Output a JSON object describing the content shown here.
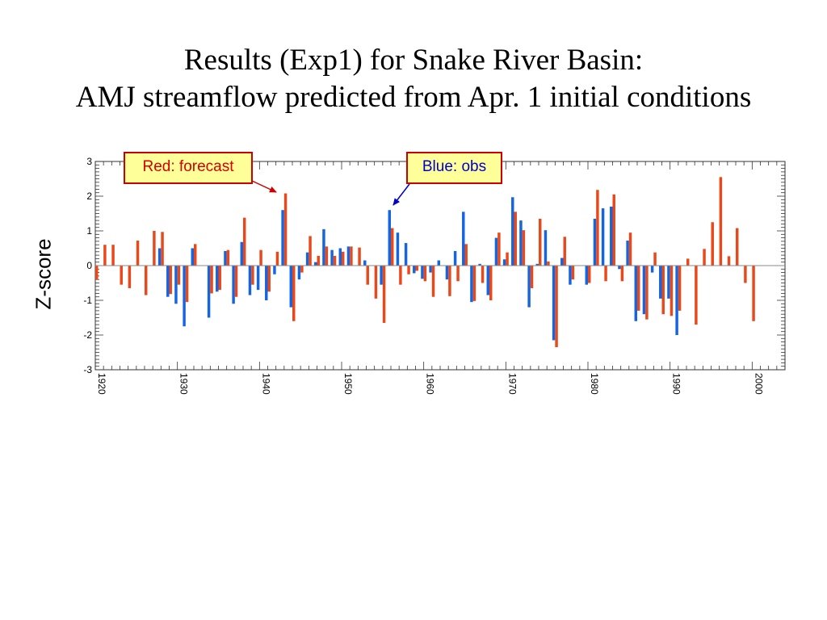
{
  "title_line1": "Results (Exp1) for Snake River Basin:",
  "title_line2": "AMJ streamflow predicted from Apr. 1 initial conditions",
  "annotations": {
    "forecast": "Red: forecast",
    "obs": "Blue: obs"
  },
  "colors": {
    "forecast": "#e8481a",
    "obs": "#1565e0"
  },
  "chart_data": {
    "type": "bar",
    "title": "",
    "xlabel": "",
    "ylabel": "Z-score",
    "xlim": [
      1920,
      2004
    ],
    "ylim": [
      -3,
      3
    ],
    "xticks": [
      "1920",
      "1930",
      "1940",
      "1950",
      "1960",
      "1970",
      "1980",
      "1990",
      "2000"
    ],
    "yticks": [
      "3",
      "2",
      "1",
      "0",
      "-1",
      "-2",
      "-3"
    ],
    "grid": false,
    "years": [
      1920,
      1921,
      1922,
      1923,
      1924,
      1925,
      1926,
      1927,
      1928,
      1929,
      1930,
      1931,
      1932,
      1933,
      1934,
      1935,
      1936,
      1937,
      1938,
      1939,
      1940,
      1941,
      1942,
      1943,
      1944,
      1945,
      1946,
      1947,
      1948,
      1949,
      1950,
      1951,
      1952,
      1953,
      1954,
      1955,
      1956,
      1957,
      1958,
      1959,
      1960,
      1961,
      1962,
      1963,
      1964,
      1965,
      1966,
      1967,
      1968,
      1969,
      1970,
      1971,
      1972,
      1973,
      1974,
      1975,
      1976,
      1977,
      1978,
      1979,
      1980,
      1981,
      1982,
      1983,
      1984,
      1985,
      1986,
      1987,
      1988,
      1989,
      1990,
      1991,
      1992,
      1993,
      1994,
      1995,
      1996,
      1997,
      1998,
      1999,
      2000,
      2001,
      2002
    ],
    "series": [
      {
        "name": "obs",
        "values": [
          null,
          null,
          null,
          null,
          null,
          null,
          null,
          null,
          0.5,
          -0.9,
          -1.1,
          -1.75,
          0.5,
          null,
          -1.5,
          -0.75,
          0.42,
          -1.1,
          0.68,
          -0.85,
          -0.7,
          -1.0,
          -0.25,
          1.6,
          -1.2,
          -0.4,
          0.38,
          0.1,
          1.05,
          0.45,
          0.5,
          0.55,
          null,
          0.15,
          null,
          -0.55,
          1.6,
          0.95,
          0.65,
          -0.22,
          -0.38,
          -0.2,
          0.15,
          -0.4,
          0.42,
          1.55,
          -1.05,
          0.05,
          -0.85,
          0.8,
          0.18,
          1.97,
          1.3,
          -1.2,
          0.05,
          1.02,
          -2.15,
          0.22,
          -0.55,
          null,
          -0.55,
          1.35,
          1.65,
          1.7,
          -0.1,
          0.72,
          -1.6,
          -1.4,
          -0.2,
          -0.95,
          -0.95,
          -2.0,
          null,
          null,
          null,
          null,
          null,
          null,
          null,
          null,
          null,
          null,
          null
        ]
      },
      {
        "name": "forecast",
        "values": [
          -0.4,
          0.6,
          0.6,
          -0.55,
          -0.65,
          0.72,
          -0.85,
          1.0,
          0.97,
          -0.82,
          -0.55,
          -1.05,
          0.62,
          null,
          -0.8,
          -0.7,
          0.45,
          -0.9,
          1.38,
          -0.55,
          0.45,
          -0.75,
          0.4,
          2.08,
          -1.6,
          -0.2,
          0.85,
          0.28,
          0.55,
          0.28,
          0.4,
          0.55,
          0.52,
          -0.55,
          -0.95,
          -1.65,
          1.08,
          -0.55,
          -0.25,
          -0.15,
          -0.45,
          -0.9,
          null,
          -0.88,
          -0.45,
          0.62,
          -1.02,
          -0.5,
          -1.0,
          0.95,
          0.38,
          1.55,
          1.02,
          -0.65,
          1.35,
          0.12,
          -2.35,
          0.83,
          -0.4,
          null,
          -0.5,
          2.18,
          -0.45,
          2.05,
          -0.45,
          0.95,
          -1.3,
          -1.55,
          0.38,
          -1.4,
          -1.45,
          -1.3,
          0.2,
          -1.7,
          0.48,
          1.25,
          2.55,
          0.27,
          1.08,
          -0.5,
          -1.6,
          null,
          null
        ]
      }
    ]
  }
}
